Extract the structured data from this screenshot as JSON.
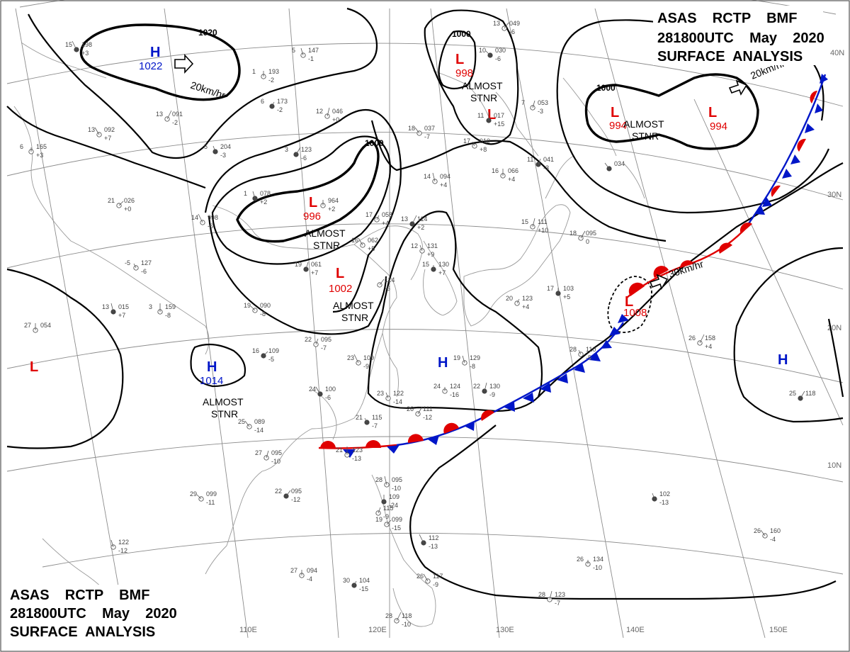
{
  "header": {
    "line1": "ASAS    RCTP    BMF",
    "line2": "281800UTC    May    2020",
    "line3": "SURFACE  ANALYSIS"
  },
  "grid_labels": {
    "lat": [
      "40N",
      "30N",
      "20N",
      "10N"
    ],
    "lon": [
      "110E",
      "120E",
      "130E",
      "140E",
      "150E"
    ]
  },
  "isobar_labels": [
    "1020",
    "1000",
    "1000",
    "1000"
  ],
  "systems": [
    {
      "type": "H",
      "pressure": "1022"
    },
    {
      "type": "L",
      "pressure": "998"
    },
    {
      "type": "L",
      "pressure": ""
    },
    {
      "type": "L",
      "pressure": "994"
    },
    {
      "type": "L",
      "pressure": "994"
    },
    {
      "type": "L",
      "pressure": "996"
    },
    {
      "type": "L",
      "pressure": "1002"
    },
    {
      "type": "L",
      "pressure": "1008"
    },
    {
      "type": "H",
      "pressure": "1014"
    },
    {
      "type": "L",
      "pressure": ""
    },
    {
      "type": "H",
      "pressure": ""
    },
    {
      "type": "H",
      "pressure": ""
    }
  ],
  "annotations": {
    "almost_stnr": "ALMOST\nSTNR",
    "motion_20": "20km/hr",
    "motion_20b": "20km/hr",
    "motion_30": "30km/hr"
  },
  "colors": {
    "low": "#e00000",
    "high": "#0016c8",
    "warm_front": "#e00000",
    "cold_front": "#0016c8"
  },
  "stations": [
    {
      "t": "15",
      "p": "198",
      "c": "+3"
    },
    {
      "t": "5",
      "p": "147",
      "c": "-1"
    },
    {
      "t": "1",
      "p": "193",
      "c": "-2"
    },
    {
      "t": "6",
      "p": "173",
      "c": "-2"
    },
    {
      "t": "13",
      "p": "091",
      "c": "-2"
    },
    {
      "t": "13",
      "p": "092",
      "c": "+7"
    },
    {
      "t": "5",
      "p": "204",
      "c": "-3"
    },
    {
      "t": "6",
      "p": "165",
      "c": "+3"
    },
    {
      "t": "12",
      "p": "046",
      "c": "+0"
    },
    {
      "t": "3",
      "p": "123",
      "c": "-6"
    },
    {
      "t": "18",
      "p": "037",
      "c": "-7"
    },
    {
      "t": "17",
      "p": "010",
      "c": "+8"
    },
    {
      "t": "11",
      "p": "017",
      "c": "+15"
    },
    {
      "t": "7",
      "p": "053",
      "c": "-3"
    },
    {
      "t": "13",
      "p": "049",
      "c": "-6"
    },
    {
      "t": "10",
      "p": "030",
      "c": "-6"
    },
    {
      "t": "14",
      "p": "094",
      "c": "+4"
    },
    {
      "t": "16",
      "p": "066",
      "c": "+4"
    },
    {
      "t": "11",
      "p": "041",
      "c": "-3"
    },
    {
      "t": "21",
      "p": "026",
      "c": "+0"
    },
    {
      "t": "14",
      "p": "998",
      "c": "-6"
    },
    {
      "t": "1",
      "p": "078",
      "c": "+2"
    },
    {
      "t": "",
      "p": "964",
      "c": "+2"
    },
    {
      "t": "17",
      "p": "058",
      "c": "+4"
    },
    {
      "t": "13",
      "p": "114",
      "c": "+2"
    },
    {
      "t": "16",
      "p": "062",
      "c": "+5"
    },
    {
      "t": "12",
      "p": "131",
      "c": "+9"
    },
    {
      "t": "15",
      "p": "130",
      "c": "+7"
    },
    {
      "t": "15",
      "p": "111",
      "c": "+10"
    },
    {
      "t": "18",
      "p": "095",
      "c": "0"
    },
    {
      "t": "",
      "p": "034",
      "c": ""
    },
    {
      "t": "-5",
      "p": "127",
      "c": "-6"
    },
    {
      "t": "3",
      "p": "159",
      "c": "-8"
    },
    {
      "t": "19",
      "p": "061",
      "c": "+7"
    },
    {
      "t": "",
      "p": "114",
      "c": "-6"
    },
    {
      "t": "19",
      "p": "090",
      "c": "-8"
    },
    {
      "t": "13",
      "p": "015",
      "c": "+7"
    },
    {
      "t": "27",
      "p": "054",
      "c": ""
    },
    {
      "t": "22",
      "p": "095",
      "c": "-7"
    },
    {
      "t": "16",
      "p": "109",
      "c": "-5"
    },
    {
      "t": "23",
      "p": "109",
      "c": "-9"
    },
    {
      "t": "19",
      "p": "129",
      "c": "-8"
    },
    {
      "t": "17",
      "p": "103",
      "c": "+5"
    },
    {
      "t": "20",
      "p": "123",
      "c": "+4"
    },
    {
      "t": "26",
      "p": "158",
      "c": "+4"
    },
    {
      "t": "24",
      "p": "100",
      "c": "-6"
    },
    {
      "t": "23",
      "p": "122",
      "c": "-14"
    },
    {
      "t": "24",
      "p": "124",
      "c": "-16"
    },
    {
      "t": "22",
      "p": "130",
      "c": "-9"
    },
    {
      "t": "26",
      "p": "111",
      "c": "-12"
    },
    {
      "t": "25",
      "p": "089",
      "c": "-14"
    },
    {
      "t": "21",
      "p": "115",
      "c": "-7"
    },
    {
      "t": "21",
      "p": "123",
      "c": "-13"
    },
    {
      "t": "27",
      "p": "095",
      "c": "-10"
    },
    {
      "t": "22",
      "p": "095",
      "c": "-12"
    },
    {
      "t": "29",
      "p": "099",
      "c": "-11"
    },
    {
      "t": "28",
      "p": "095",
      "c": "-10"
    },
    {
      "t": "",
      "p": "109",
      "c": "-24"
    },
    {
      "t": "",
      "p": "115",
      "c": "-9"
    },
    {
      "t": "19",
      "p": "099",
      "c": "-15"
    },
    {
      "t": "",
      "p": "112",
      "c": "-13"
    },
    {
      "t": "",
      "p": "122",
      "c": "-12"
    },
    {
      "t": "27",
      "p": "094",
      "c": "-4"
    },
    {
      "t": "30",
      "p": "104",
      "c": "-15"
    },
    {
      "t": "28",
      "p": "118",
      "c": "-10"
    },
    {
      "t": "26",
      "p": "117",
      "c": "-9"
    },
    {
      "t": "",
      "p": "102",
      "c": "-13"
    },
    {
      "t": "26",
      "p": "134",
      "c": "-10"
    },
    {
      "t": "28",
      "p": "123",
      "c": "-7"
    },
    {
      "t": "25",
      "p": "118",
      "c": ""
    },
    {
      "t": "26",
      "p": "160",
      "c": "-4"
    },
    {
      "t": "28",
      "p": "110",
      "c": "-5"
    },
    {
      "t": "24",
      "p": "",
      "c": ""
    }
  ]
}
